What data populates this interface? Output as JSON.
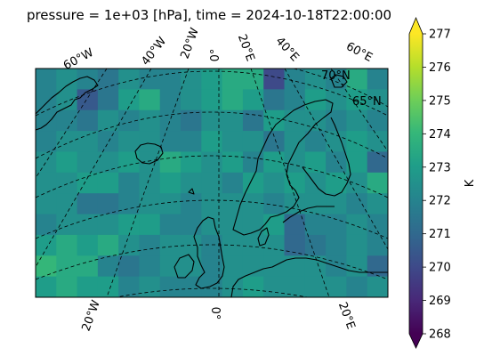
{
  "title": "pressure = 1e+03 [hPa], time = 2024-10-18T22:00:00",
  "colorbar": {
    "label": "K",
    "ticks": [
      "268",
      "269",
      "270",
      "271",
      "272",
      "273",
      "274",
      "275",
      "276",
      "277"
    ],
    "min": 268,
    "max": 277,
    "colormap": "viridis"
  },
  "grid_labels": {
    "top": [
      "60°W",
      "40°W",
      "20°W",
      "0°",
      "20°E",
      "40°E",
      "60°E"
    ],
    "bottom": [
      "20°W",
      "0°",
      "20°E"
    ],
    "inner": [
      "70°N",
      "65°N"
    ]
  },
  "chart_data": {
    "type": "heatmap",
    "title": "pressure = 1e+03 [hPa], time = 2024-10-18T22:00:00",
    "units": "K",
    "value_range": [
      268,
      277
    ],
    "rows": 11,
    "cols": 17,
    "values": [
      [
        272.0,
        272.5,
        272.0,
        271.5,
        272.5,
        272.0,
        272.0,
        272.5,
        273.0,
        273.5,
        273.5,
        270.0,
        272.0,
        272.5,
        272.0,
        273.5,
        272.0
      ],
      [
        272.0,
        272.5,
        270.5,
        271.5,
        273.0,
        273.5,
        272.0,
        272.5,
        273.0,
        273.5,
        273.0,
        271.5,
        272.0,
        273.0,
        272.5,
        273.0,
        272.5
      ],
      [
        272.0,
        272.0,
        271.5,
        272.5,
        272.0,
        272.5,
        272.0,
        271.5,
        272.5,
        272.5,
        271.5,
        273.0,
        272.5,
        272.5,
        272.0,
        272.5,
        272.0
      ],
      [
        272.0,
        272.5,
        272.5,
        272.0,
        272.5,
        272.5,
        272.0,
        272.0,
        273.0,
        272.5,
        272.5,
        271.5,
        272.5,
        272.0,
        272.5,
        273.0,
        272.5
      ],
      [
        272.5,
        273.0,
        272.5,
        272.5,
        273.0,
        272.5,
        273.5,
        273.0,
        272.5,
        273.0,
        272.0,
        273.0,
        272.5,
        273.0,
        272.0,
        273.0,
        271.0
      ],
      [
        272.5,
        272.5,
        273.0,
        273.0,
        272.0,
        272.5,
        273.0,
        272.5,
        272.5,
        272.0,
        273.0,
        272.5,
        273.0,
        272.5,
        273.0,
        272.5,
        273.5
      ],
      [
        272.5,
        272.5,
        271.5,
        271.5,
        272.0,
        272.5,
        272.5,
        272.0,
        272.5,
        272.5,
        272.5,
        272.0,
        272.5,
        272.5,
        272.5,
        272.0,
        272.5
      ],
      [
        272.0,
        272.5,
        272.5,
        272.5,
        273.0,
        273.0,
        272.0,
        272.0,
        272.5,
        272.5,
        272.5,
        273.0,
        271.0,
        272.0,
        272.0,
        272.5,
        272.0
      ],
      [
        273.0,
        273.5,
        273.0,
        273.5,
        272.5,
        272.0,
        272.5,
        272.5,
        272.0,
        272.5,
        272.5,
        272.5,
        271.0,
        271.5,
        272.0,
        272.5,
        272.0
      ],
      [
        274.0,
        273.5,
        273.5,
        272.0,
        271.5,
        272.0,
        272.5,
        272.5,
        272.0,
        272.5,
        272.5,
        272.5,
        272.5,
        272.5,
        272.0,
        272.5,
        271.0
      ],
      [
        273.0,
        273.5,
        273.0,
        273.0,
        272.0,
        272.5,
        272.0,
        272.0,
        272.0,
        272.5,
        273.0,
        272.5,
        272.5,
        272.5,
        272.5,
        272.0,
        272.5
      ]
    ]
  }
}
